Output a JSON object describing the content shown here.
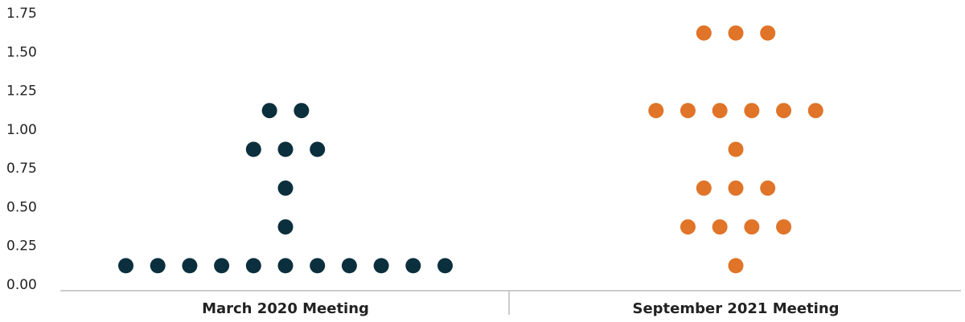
{
  "chart_data": {
    "type": "dot",
    "groups": [
      {
        "category": "March 2020 Meeting",
        "color": "#0b2f3d",
        "values": [
          0.125,
          0.125,
          0.125,
          0.125,
          0.125,
          0.125,
          0.125,
          0.125,
          0.125,
          0.125,
          0.125,
          0.375,
          0.625,
          0.875,
          0.875,
          0.875,
          1.125,
          1.125
        ]
      },
      {
        "category": "September 2021 Meeting",
        "color": "#e07428",
        "values": [
          0.125,
          0.375,
          0.375,
          0.375,
          0.375,
          0.625,
          0.625,
          0.625,
          0.875,
          1.125,
          1.125,
          1.125,
          1.125,
          1.125,
          1.125,
          1.625,
          1.625,
          1.625
        ]
      }
    ],
    "ylim": [
      0,
      1.75
    ],
    "yticks": [
      {
        "value": 0,
        "label": "0.00"
      },
      {
        "value": 0.25,
        "label": "0.25"
      },
      {
        "value": 0.5,
        "label": "0.50"
      },
      {
        "value": 0.75,
        "label": "0.75"
      },
      {
        "value": 1,
        "label": "1.00"
      },
      {
        "value": 1.25,
        "label": "1.25"
      },
      {
        "value": 1.5,
        "label": "1.50"
      },
      {
        "value": 1.75,
        "label": "1.75"
      }
    ],
    "grid": false
  }
}
